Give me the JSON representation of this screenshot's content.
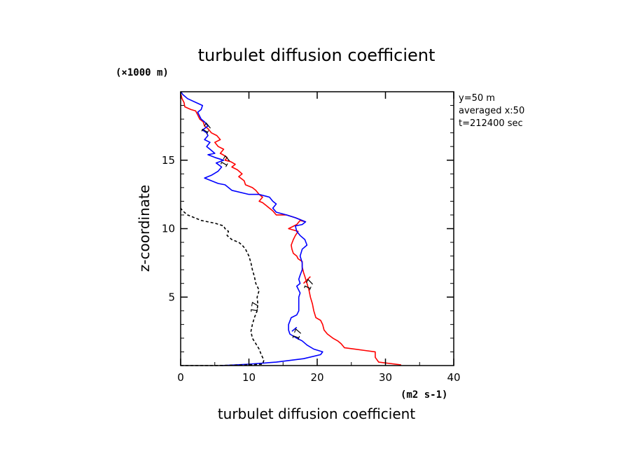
{
  "chart_data": {
    "type": "line",
    "title": "turbulet diffusion coefficient",
    "xlabel": "turbulet diffusion coefficient",
    "ylabel": "z-coordinate",
    "x_unit": "(m2 s-1)",
    "y_unit": "(×1000 m)",
    "xlim": [
      0,
      40
    ],
    "ylim": [
      0,
      20
    ],
    "x_ticks": [
      "0",
      "10",
      "20",
      "30",
      "40"
    ],
    "y_ticks": [
      "5",
      "10",
      "15"
    ],
    "y_tick_values": [
      5,
      10,
      15
    ],
    "x_tick_values": [
      0,
      10,
      20,
      30,
      40
    ],
    "grid": false,
    "info_lines": [
      "y=50 m",
      "averaged  x:50",
      "t=212400 sec"
    ],
    "series": [
      {
        "color": "#ff0000",
        "style": "solid",
        "points": [
          [
            32.3,
            0.05
          ],
          [
            29.0,
            0.25
          ],
          [
            28.5,
            0.6
          ],
          [
            28.5,
            1.0
          ],
          [
            27.0,
            1.1
          ],
          [
            24.0,
            1.3
          ],
          [
            23.5,
            1.6
          ],
          [
            23.0,
            1.8
          ],
          [
            22.3,
            2.0
          ],
          [
            21.5,
            2.3
          ],
          [
            21.0,
            2.6
          ],
          [
            20.8,
            3.0
          ],
          [
            20.5,
            3.3
          ],
          [
            19.8,
            3.5
          ],
          [
            19.5,
            4.0
          ],
          [
            19.3,
            4.5
          ],
          [
            19.0,
            5.0
          ],
          [
            18.8,
            5.5
          ],
          [
            18.5,
            6.0
          ],
          [
            18.2,
            6.5
          ],
          [
            18.0,
            6.8
          ],
          [
            17.8,
            7.2
          ],
          [
            17.8,
            7.6
          ],
          [
            17.2,
            7.8
          ],
          [
            17.0,
            8.0
          ],
          [
            16.5,
            8.2
          ],
          [
            16.3,
            8.5
          ],
          [
            16.2,
            8.8
          ],
          [
            16.5,
            9.2
          ],
          [
            16.8,
            9.5
          ],
          [
            17.2,
            9.8
          ],
          [
            15.8,
            10.0
          ],
          [
            17.0,
            10.3
          ],
          [
            17.5,
            10.6
          ],
          [
            18.3,
            10.5
          ],
          [
            16.8,
            10.8
          ],
          [
            15.5,
            11.0
          ],
          [
            14.0,
            11.0
          ],
          [
            13.5,
            11.3
          ],
          [
            13.0,
            11.5
          ],
          [
            12.5,
            11.7
          ],
          [
            12.0,
            11.9
          ],
          [
            11.5,
            12.0
          ],
          [
            12.0,
            12.3
          ],
          [
            11.5,
            12.5
          ],
          [
            11.0,
            12.8
          ],
          [
            10.5,
            13.0
          ],
          [
            9.5,
            13.2
          ],
          [
            9.3,
            13.5
          ],
          [
            8.5,
            13.8
          ],
          [
            9.0,
            14.0
          ],
          [
            8.3,
            14.3
          ],
          [
            7.5,
            14.5
          ],
          [
            8.0,
            14.7
          ],
          [
            7.3,
            14.9
          ],
          [
            6.5,
            15.0
          ],
          [
            6.8,
            15.2
          ],
          [
            6.2,
            15.4
          ],
          [
            5.8,
            15.5
          ],
          [
            6.3,
            15.8
          ],
          [
            5.5,
            16.0
          ],
          [
            5.0,
            16.3
          ],
          [
            5.8,
            16.5
          ],
          [
            5.3,
            16.8
          ],
          [
            4.5,
            17.0
          ],
          [
            4.0,
            17.3
          ],
          [
            3.5,
            17.5
          ],
          [
            3.3,
            17.8
          ],
          [
            2.8,
            18.0
          ],
          [
            2.5,
            18.3
          ],
          [
            2.2,
            18.6
          ],
          [
            1.5,
            18.7
          ],
          [
            0.6,
            18.9
          ],
          [
            0.5,
            19.2
          ],
          [
            0.2,
            19.5
          ],
          [
            0.05,
            19.8
          ]
        ]
      },
      {
        "color": "#ff0000",
        "style": "solid",
        "points": [
          [
            18.0,
            6.0
          ],
          [
            19.0,
            6.5
          ]
        ]
      },
      {
        "color": "#0000ff",
        "style": "solid",
        "points": [
          [
            6.0,
            0.0
          ],
          [
            10.0,
            0.1
          ],
          [
            14.0,
            0.25
          ],
          [
            18.0,
            0.5
          ],
          [
            20.5,
            0.8
          ],
          [
            20.8,
            1.0
          ],
          [
            19.5,
            1.2
          ],
          [
            18.5,
            1.5
          ],
          [
            17.8,
            1.8
          ],
          [
            17.0,
            2.0
          ],
          [
            16.0,
            2.3
          ],
          [
            15.8,
            2.6
          ],
          [
            15.8,
            3.0
          ],
          [
            16.2,
            3.5
          ],
          [
            17.0,
            3.7
          ],
          [
            17.3,
            4.0
          ],
          [
            17.3,
            4.5
          ],
          [
            17.3,
            5.0
          ],
          [
            17.5,
            5.3
          ],
          [
            17.0,
            5.8
          ],
          [
            17.5,
            6.0
          ],
          [
            17.3,
            6.3
          ],
          [
            17.5,
            6.6
          ],
          [
            17.8,
            7.0
          ],
          [
            17.8,
            7.5
          ],
          [
            17.5,
            8.0
          ],
          [
            17.8,
            8.5
          ],
          [
            18.5,
            8.8
          ],
          [
            18.2,
            9.2
          ],
          [
            17.5,
            9.5
          ],
          [
            17.0,
            9.8
          ],
          [
            16.8,
            10.2
          ],
          [
            17.8,
            10.3
          ],
          [
            18.3,
            10.5
          ],
          [
            16.8,
            10.8
          ],
          [
            15.5,
            11.0
          ],
          [
            14.0,
            11.2
          ],
          [
            13.5,
            11.5
          ],
          [
            14.0,
            11.8
          ],
          [
            13.5,
            12.0
          ],
          [
            13.0,
            12.3
          ],
          [
            11.5,
            12.5
          ],
          [
            10.0,
            12.5
          ],
          [
            7.5,
            12.8
          ],
          [
            6.5,
            13.2
          ],
          [
            5.5,
            13.3
          ],
          [
            4.5,
            13.5
          ],
          [
            3.5,
            13.7
          ],
          [
            4.5,
            13.9
          ],
          [
            5.5,
            14.2
          ],
          [
            6.0,
            14.5
          ],
          [
            5.2,
            14.8
          ],
          [
            6.3,
            15.0
          ],
          [
            5.0,
            15.2
          ],
          [
            4.0,
            15.4
          ],
          [
            5.0,
            15.5
          ],
          [
            4.3,
            15.8
          ],
          [
            3.8,
            16.0
          ],
          [
            4.3,
            16.3
          ],
          [
            3.5,
            16.5
          ],
          [
            4.0,
            16.8
          ],
          [
            3.8,
            17.0
          ],
          [
            3.2,
            17.2
          ],
          [
            4.0,
            17.5
          ],
          [
            3.5,
            17.8
          ],
          [
            3.0,
            18.0
          ],
          [
            2.8,
            18.2
          ],
          [
            2.5,
            18.5
          ],
          [
            3.0,
            18.7
          ],
          [
            3.2,
            19.0
          ],
          [
            2.3,
            19.2
          ],
          [
            1.0,
            19.5
          ],
          [
            0.3,
            19.8
          ],
          [
            0.05,
            20.0
          ]
        ]
      },
      {
        "color": "#0000ff",
        "style": "solid",
        "points": [
          [
            16.3,
            2.5
          ],
          [
            17.0,
            2.8
          ]
        ]
      },
      {
        "color": "#000000",
        "style": "dashed",
        "points": [
          [
            0.0,
            0.0
          ],
          [
            5.0,
            0.0
          ],
          [
            10.0,
            0.05
          ],
          [
            12.0,
            0.1
          ],
          [
            12.2,
            0.4
          ],
          [
            11.8,
            0.8
          ],
          [
            11.5,
            1.2
          ],
          [
            11.0,
            1.6
          ],
          [
            10.5,
            2.0
          ],
          [
            10.3,
            2.5
          ],
          [
            10.5,
            3.0
          ],
          [
            10.8,
            3.5
          ],
          [
            11.2,
            4.0
          ],
          [
            11.3,
            4.5
          ],
          [
            11.2,
            5.0
          ],
          [
            11.5,
            5.5
          ],
          [
            11.0,
            6.0
          ],
          [
            10.8,
            6.5
          ],
          [
            10.5,
            7.0
          ],
          [
            10.3,
            7.5
          ],
          [
            10.0,
            8.0
          ],
          [
            9.5,
            8.5
          ],
          [
            9.0,
            8.8
          ],
          [
            8.5,
            9.0
          ],
          [
            7.5,
            9.2
          ],
          [
            6.8,
            9.5
          ],
          [
            7.0,
            9.8
          ],
          [
            6.5,
            10.0
          ],
          [
            6.3,
            10.2
          ],
          [
            5.0,
            10.4
          ],
          [
            3.0,
            10.6
          ],
          [
            1.0,
            11.0
          ],
          [
            0.3,
            11.3
          ],
          [
            0.0,
            11.5
          ]
        ]
      }
    ],
    "annotations": [
      {
        "text": "17",
        "x": 11.3,
        "y": 4.2,
        "rotate": -80
      },
      {
        "text": "17",
        "x": 17.5,
        "y": 2.2,
        "rotate": -70
      },
      {
        "text": "17",
        "x": 19.2,
        "y": 5.8,
        "rotate": -65
      },
      {
        "text": "17",
        "x": 4.2,
        "y": 17.2,
        "rotate": -60
      },
      {
        "text": "17",
        "x": 7.0,
        "y": 14.8,
        "rotate": -60
      }
    ]
  }
}
